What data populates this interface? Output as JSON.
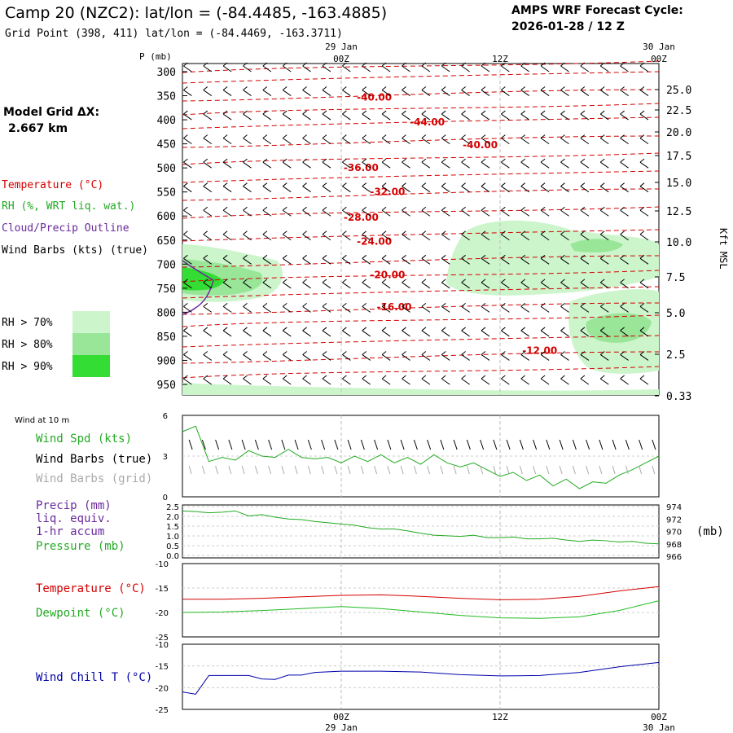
{
  "header": {
    "station_title": "Camp 20 (NZC2):  lat/lon = (-84.4485, -163.4885)",
    "grid_point": "Grid Point (398, 411) lat/lon = (-84.4469, -163.3711)",
    "forecast_title": "AMPS WRF Forecast Cycle:",
    "forecast_cycle": "2026-01-28 / 12  Z",
    "model_grid_label": "Model Grid ΔX:",
    "model_grid_value": "2.667 km"
  },
  "time_axis": {
    "top_dates": [
      {
        "t": 12,
        "label": "29 Jan"
      },
      {
        "t": 36,
        "label": "30 Jan"
      }
    ],
    "ticks": [
      {
        "t": 12,
        "label": "00Z"
      },
      {
        "t": 24,
        "label": "12Z"
      },
      {
        "t": 36,
        "label": "00Z"
      }
    ],
    "bottom_ticks": [
      {
        "t": 12,
        "label": "00Z"
      },
      {
        "t": 24,
        "label": "12Z"
      },
      {
        "t": 36,
        "label": "00Z"
      }
    ],
    "bottom_dates": [
      {
        "t": 12,
        "label": "29 Jan"
      },
      {
        "t": 36,
        "label": "30 Jan"
      }
    ]
  },
  "legend": {
    "temperature": "Temperature (°C)",
    "rh": "RH (%, WRT liq. wat.)",
    "cloud": "Cloud/Precip Outline",
    "wind_barbs": "Wind Barbs (kts) (true)",
    "rh70": "RH > 70%",
    "rh80": "RH > 80%",
    "rh90": "RH > 90%",
    "wind10m": "Wind at 10 m",
    "wind_spd": "Wind Spd (kts)",
    "wind_barbs_true": "Wind Barbs (true)",
    "wind_barbs_grid": "Wind Barbs (grid)",
    "precip1": "Precip (mm)",
    "precip2": "liq. equiv.",
    "precip3": "1-hr accum",
    "pressure": "Pressure (mb)",
    "pressure_unit": "(mb)",
    "temp2": "Temperature (°C)",
    "dewpoint": "Dewpoint (°C)",
    "windchill": "Wind Chill T (°C)",
    "kft_label": "Kft MSL",
    "p_label": "P (mb)"
  },
  "colors": {
    "temp": "#d40000",
    "rh": "#22aa22",
    "cloud": "#6a2a9a",
    "rh70": "#ccf5cc",
    "rh80": "#99e699",
    "rh90": "#33dd33",
    "dew": "#22bb22",
    "chill": "#0000aa",
    "grid_barb": "#aaaaaa"
  },
  "chart_data": [
    {
      "type": "contour",
      "name": "cross-section",
      "x_range_hours": [
        0,
        36
      ],
      "pressure_levels": [
        "300",
        "350",
        "400",
        "450",
        "500",
        "550",
        "600",
        "650",
        "700",
        "750",
        "800",
        "850",
        "900",
        "950"
      ],
      "height_kft": [
        "25.0",
        "22.5",
        "20.0",
        "17.5",
        "15.0",
        "12.5",
        "10.0",
        "7.5",
        "5.0",
        "2.5",
        "0.33"
      ],
      "temperature_contours": [
        {
          "label": "-40.00",
          "t": 14.5,
          "p": 353
        },
        {
          "label": "-44.00",
          "t": 18.5,
          "p": 405
        },
        {
          "label": "-40.00",
          "t": 22.5,
          "p": 452
        },
        {
          "label": "-36.00",
          "t": 13.5,
          "p": 500
        },
        {
          "label": "-32.00",
          "t": 15.5,
          "p": 550
        },
        {
          "label": "-28.00",
          "t": 13.5,
          "p": 603
        },
        {
          "label": "-24.00",
          "t": 14.5,
          "p": 653
        },
        {
          "label": "-20.00",
          "t": 15.5,
          "p": 722
        },
        {
          "label": "-16.00",
          "t": 16.0,
          "p": 789
        },
        {
          "label": "-12.00",
          "t": 27.0,
          "p": 880
        }
      ]
    },
    {
      "type": "line",
      "name": "wind-10m",
      "ylim": [
        0,
        6
      ],
      "yticks": [
        "0",
        "3",
        "6"
      ],
      "series": [
        {
          "name": "Wind Spd (kts)",
          "x": [
            0,
            1,
            2,
            3,
            4,
            5,
            6,
            7,
            8,
            9,
            10,
            11,
            12,
            13,
            14,
            15,
            16,
            17,
            18,
            19,
            20,
            21,
            22,
            23,
            24,
            25,
            26,
            27,
            28,
            29,
            30,
            31,
            32,
            33,
            34,
            35,
            36
          ],
          "values": [
            4.8,
            5.2,
            2.6,
            2.9,
            2.7,
            3.4,
            3.0,
            2.9,
            3.5,
            2.9,
            2.8,
            2.9,
            2.5,
            3.0,
            2.6,
            3.1,
            2.5,
            2.9,
            2.4,
            3.1,
            2.5,
            2.2,
            2.5,
            2.0,
            1.5,
            1.8,
            1.2,
            1.6,
            0.8,
            1.3,
            0.6,
            1.1,
            1.0,
            1.6,
            2.0,
            2.5,
            3.0
          ]
        }
      ]
    },
    {
      "type": "line",
      "name": "precip-pressure",
      "ylim_precip": [
        0,
        2.5
      ],
      "yticks_precip": [
        "0.0",
        "0.5",
        "1.0",
        "1.5",
        "2.0",
        "2.5"
      ],
      "ylim_pressure": [
        966,
        974
      ],
      "yticks_pressure": [
        "966",
        "968",
        "970",
        "972",
        "974"
      ],
      "series": [
        {
          "name": "Pressure (mb)",
          "x": [
            0,
            1,
            2,
            3,
            4,
            5,
            6,
            7,
            8,
            9,
            10,
            11,
            12,
            13,
            14,
            15,
            16,
            17,
            18,
            19,
            20,
            21,
            22,
            23,
            24,
            25,
            26,
            27,
            28,
            29,
            30,
            31,
            32,
            33,
            34,
            35,
            36
          ],
          "values": [
            973.3,
            973.2,
            973.0,
            973.1,
            973.3,
            972.5,
            972.7,
            972.3,
            972.0,
            971.9,
            971.6,
            971.4,
            971.2,
            971.0,
            970.6,
            970.4,
            970.4,
            970.1,
            969.7,
            969.4,
            969.3,
            969.2,
            969.4,
            969.0,
            969.0,
            969.1,
            968.8,
            968.8,
            968.9,
            968.6,
            968.4,
            968.6,
            968.5,
            968.3,
            968.4,
            968.1,
            968.0
          ]
        }
      ]
    },
    {
      "type": "line",
      "name": "temperature-dewpoint",
      "ylim": [
        -25,
        -10
      ],
      "yticks": [
        "-25",
        "-20",
        "-15",
        "-10"
      ],
      "series": [
        {
          "name": "Temperature",
          "x": [
            0,
            3,
            6,
            9,
            12,
            15,
            18,
            21,
            24,
            27,
            30,
            33,
            36
          ],
          "values": [
            -17.3,
            -17.3,
            -17.1,
            -16.8,
            -16.5,
            -16.4,
            -16.7,
            -17.1,
            -17.4,
            -17.3,
            -16.7,
            -15.6,
            -14.7
          ]
        },
        {
          "name": "Dewpoint",
          "x": [
            0,
            3,
            6,
            9,
            12,
            15,
            18,
            21,
            24,
            27,
            30,
            33,
            36
          ],
          "values": [
            -20.0,
            -19.9,
            -19.6,
            -19.2,
            -18.8,
            -19.2,
            -19.9,
            -20.6,
            -21.1,
            -21.2,
            -20.9,
            -19.6,
            -17.6
          ]
        }
      ]
    },
    {
      "type": "line",
      "name": "wind-chill",
      "ylim": [
        -25,
        -10
      ],
      "yticks": [
        "-25",
        "-20",
        "-15",
        "-10"
      ],
      "series": [
        {
          "name": "Wind Chill T",
          "x": [
            0,
            1,
            2,
            3,
            4,
            5,
            6,
            7,
            8,
            9,
            10,
            12,
            15,
            18,
            21,
            24,
            27,
            30,
            33,
            36
          ],
          "values": [
            -21.0,
            -21.5,
            -17.2,
            -17.2,
            -17.2,
            -17.2,
            -18.0,
            -18.1,
            -17.1,
            -17.1,
            -16.5,
            -16.2,
            -16.2,
            -16.4,
            -17.0,
            -17.3,
            -17.2,
            -16.5,
            -15.2,
            -14.2
          ]
        }
      ]
    }
  ]
}
